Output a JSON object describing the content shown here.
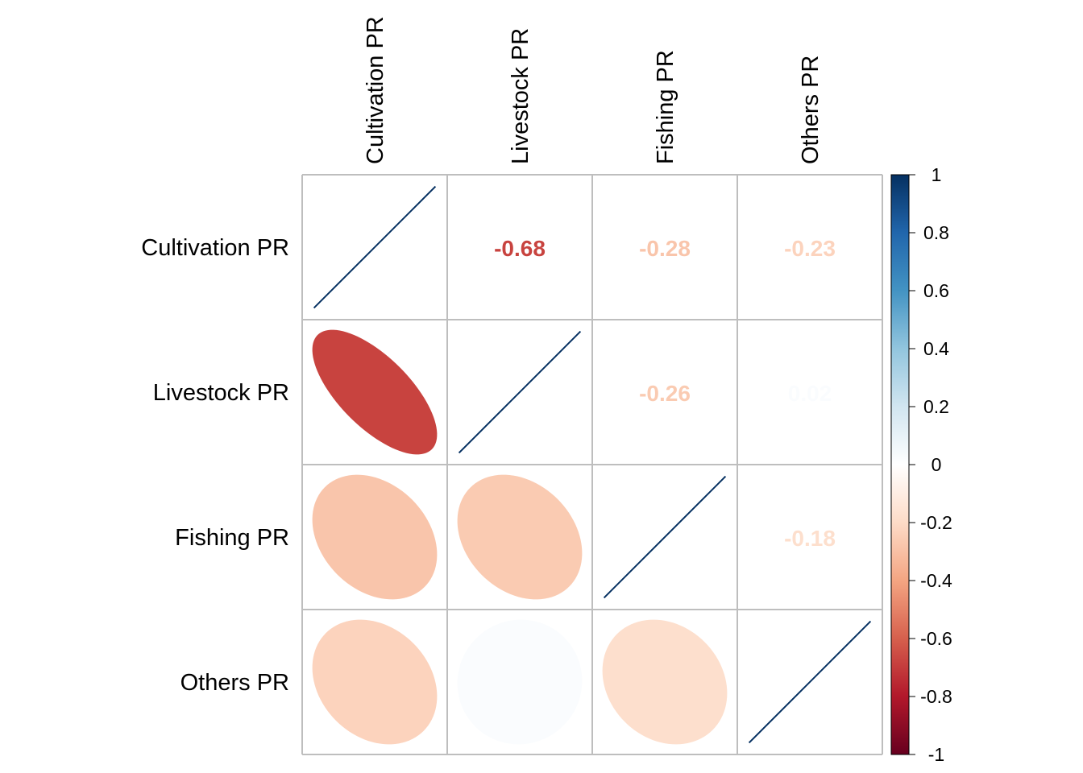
{
  "chart_data": {
    "type": "heatmap",
    "title": "",
    "variables": [
      "Cultivation PR",
      "Livestock PR",
      "Fishing PR",
      "Others PR"
    ],
    "matrix": [
      [
        1.0,
        -0.68,
        -0.28,
        -0.23
      ],
      [
        -0.68,
        1.0,
        -0.26,
        0.02
      ],
      [
        -0.28,
        -0.26,
        1.0,
        -0.18
      ],
      [
        -0.23,
        0.02,
        -0.18,
        1.0
      ]
    ],
    "upper_labels": [
      [
        "",
        "-0.68",
        "-0.28",
        "-0.23"
      ],
      [
        "",
        "",
        "-0.26",
        "0.02"
      ],
      [
        "",
        "",
        "",
        "-0.18"
      ],
      [
        "",
        "",
        "",
        ""
      ]
    ],
    "lower_method": "ellipse",
    "upper_method": "number",
    "diagonal_method": "ellipse",
    "grid": true,
    "legend": {
      "position": "right",
      "range": [
        -1,
        1
      ],
      "ticks": [
        "1",
        "0.8",
        "0.6",
        "0.4",
        "0.2",
        "0",
        "-0.2",
        "-0.4",
        "-0.6",
        "-0.8",
        "-1"
      ]
    },
    "colors": {
      "negative_end": "#67001F",
      "zero": "#FFFFFF",
      "positive_end": "#053061",
      "grid": "#BEBEBE"
    }
  }
}
